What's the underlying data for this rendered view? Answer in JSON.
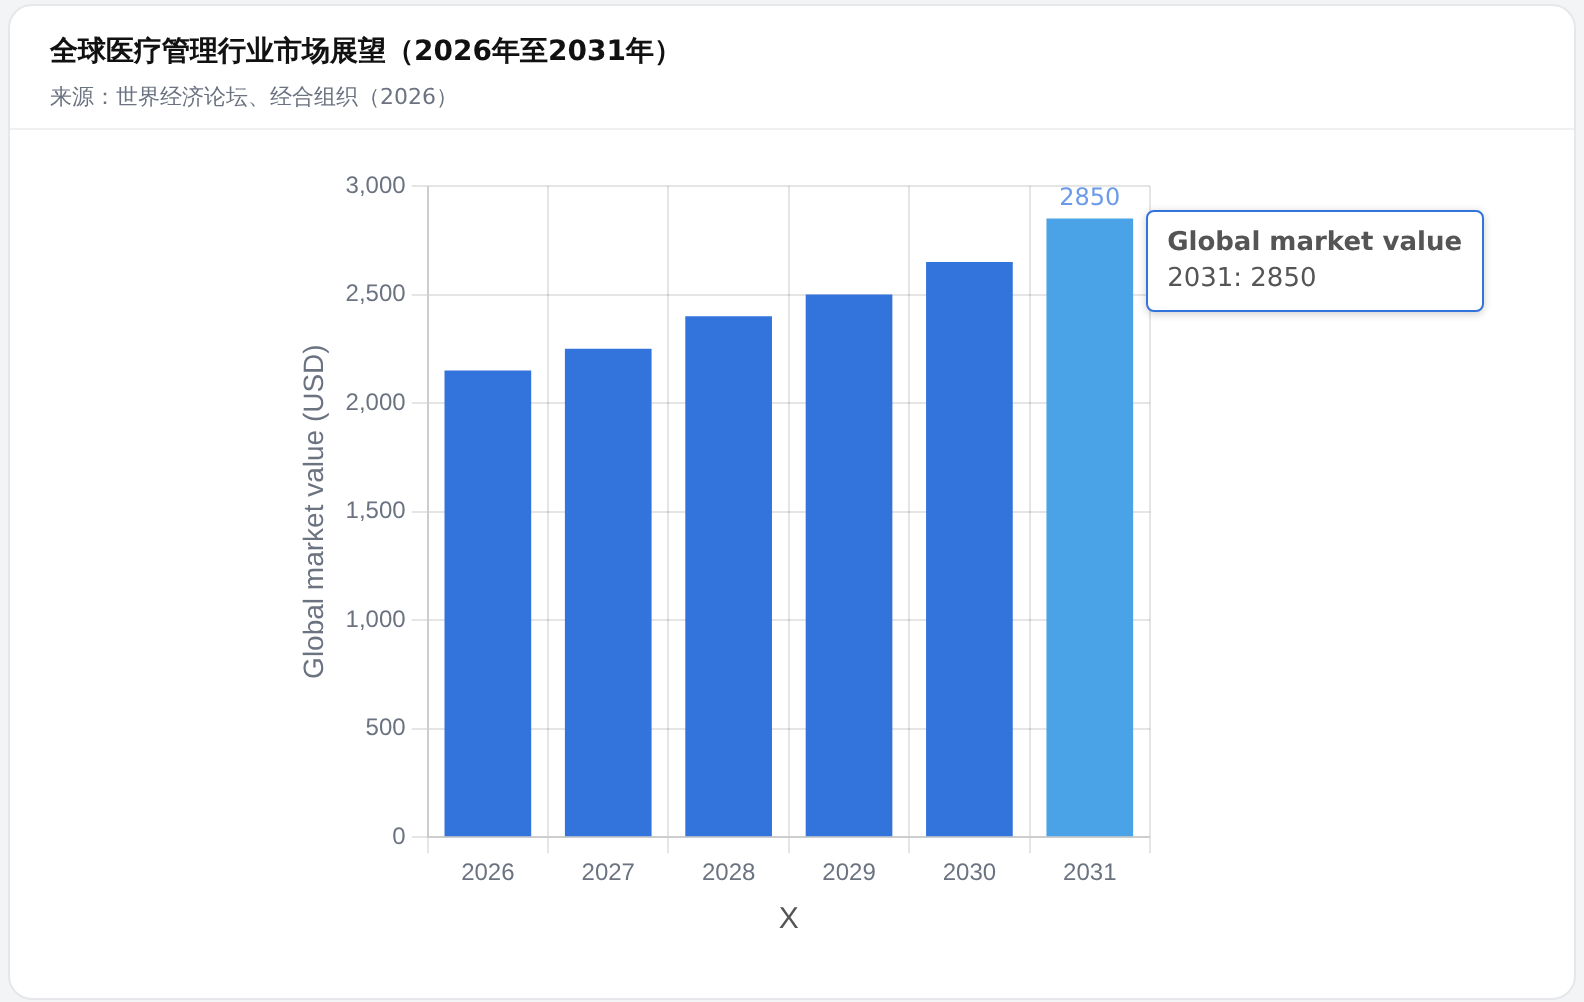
{
  "chart_data": {
    "type": "bar",
    "title": "全球医疗管理行业市场展望（2026年至2031年）",
    "subtitle": "来源：世界经济论坛、经合组织（2026）",
    "xlabel": "X",
    "ylabel": "Global market value (USD)",
    "categories": [
      "2026",
      "2027",
      "2028",
      "2029",
      "2030",
      "2031"
    ],
    "series": [
      {
        "name": "Global market value",
        "colors": [
          "#3273dc",
          "#3273dc",
          "#3273dc",
          "#3273dc",
          "#3273dc",
          "#4aa3e6"
        ],
        "values": [
          2150,
          2250,
          2400,
          2500,
          2650,
          2850
        ],
        "value_labels": [
          null,
          null,
          null,
          null,
          null,
          "2850"
        ]
      }
    ],
    "ylim": [
      0,
      3000
    ],
    "yticks": [
      0,
      500,
      {
        "value": 1000,
        "label": "1,000"
      },
      {
        "value": 1500,
        "label": "1,500"
      },
      {
        "value": 2000,
        "label": "2,000"
      },
      {
        "value": 2500,
        "label": "2,500"
      },
      {
        "value": 3000,
        "label": "3,000"
      }
    ],
    "grid": true,
    "annotations": [
      "2031: 2850"
    ]
  }
}
